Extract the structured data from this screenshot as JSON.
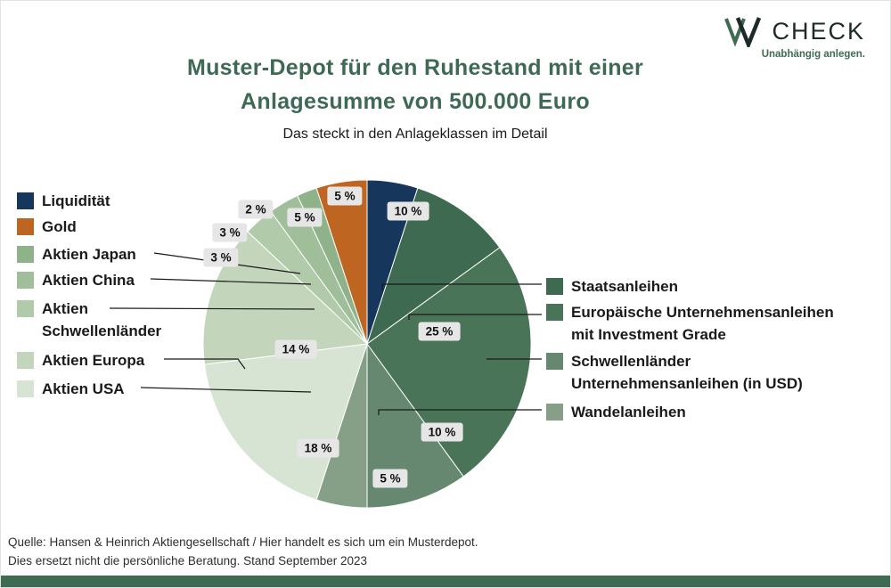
{
  "page": {
    "title_line1": "Muster-Depot für den Ruhestand mit einer",
    "title_line2": "Anlagesumme von 500.000 Euro",
    "subtitle": "Das steckt in den Anlageklassen im Detail",
    "footer_line1": "Quelle: Hansen & Heinrich Aktiengesellschaft  / Hier handelt es sich um ein Musterdepot.",
    "footer_line2": "Dies ersetzt nicht die persönliche Beratung. Stand September 2023"
  },
  "logo": {
    "name": "CHECK",
    "tagline": "Unabhängig anlegen.",
    "accent_color": "#3E6B52"
  },
  "colors": {
    "title_green": "#3E6A55",
    "bottom_bar": "#3E6B52",
    "badge_bg": "#E6E6E6"
  },
  "chart_data": {
    "type": "pie",
    "title": "Muster-Depot für den Ruhestand mit einer Anlagesumme von 500.000 Euro",
    "subtitle": "Das steckt in den Anlageklassen im Detail",
    "unit": "%",
    "direction": "clockwise",
    "start_angle_deg": 0,
    "total": 100,
    "legend_position": "both-sides",
    "slices": [
      {
        "label": "Liquidität",
        "value": 5,
        "value_label": "5 %",
        "color": "#16365C"
      },
      {
        "label": "Staatsanleihen",
        "value": 10,
        "value_label": "10 %",
        "color": "#3D6A50"
      },
      {
        "label": "Europäische Unternehmensanleihen mit Investment Grade",
        "value": 25,
        "value_label": "25 %",
        "color": "#4A7458"
      },
      {
        "label": "Schwellenländer Unternehmensanleihen (in USD)",
        "value": 10,
        "value_label": "10 %",
        "color": "#668870"
      },
      {
        "label": "Wandelanleihen",
        "value": 5,
        "value_label": "5 %",
        "color": "#85A087"
      },
      {
        "label": "Aktien USA",
        "value": 18,
        "value_label": "18 %",
        "color": "#D8E4D3"
      },
      {
        "label": "Aktien Europa",
        "value": 14,
        "value_label": "14 %",
        "color": "#C3D6BC"
      },
      {
        "label": "Aktien Schwellenländer",
        "value": 3,
        "value_label": "3 %",
        "color": "#B1CAAA"
      },
      {
        "label": "Aktien China",
        "value": 3,
        "value_label": "3 %",
        "color": "#A1BE9A"
      },
      {
        "label": "Aktien Japan",
        "value": 2,
        "value_label": "2 %",
        "color": "#90B28A"
      },
      {
        "label": "Gold",
        "value": 5,
        "value_label": "5 %",
        "color": "#BE6522"
      }
    ]
  },
  "legend_left": [
    {
      "lines": [
        "Liquidität"
      ],
      "color": "#16365C"
    },
    {
      "lines": [
        "Gold"
      ],
      "color": "#BE6522"
    },
    {
      "lines": [
        "Aktien Japan"
      ],
      "color": "#90B28A"
    },
    {
      "lines": [
        "Aktien China"
      ],
      "color": "#A1BE9A"
    },
    {
      "lines": [
        "Aktien",
        "Schwellenländer"
      ],
      "color": "#B1CAAA"
    },
    {
      "lines": [
        "Aktien Europa"
      ],
      "color": "#C3D6BC"
    },
    {
      "lines": [
        "Aktien USA"
      ],
      "color": "#D8E4D3"
    }
  ],
  "legend_right": [
    {
      "lines": [
        "Staatsanleihen"
      ],
      "color": "#3D6A50"
    },
    {
      "lines": [
        "Europäische Unternehmensanleihen",
        "mit Investment Grade"
      ],
      "color": "#4A7458"
    },
    {
      "lines": [
        "Schwellenländer",
        "Unternehmensanleihen (in USD)"
      ],
      "color": "#668870"
    },
    {
      "lines": [
        "Wandelanleihen"
      ],
      "color": "#85A087"
    }
  ]
}
